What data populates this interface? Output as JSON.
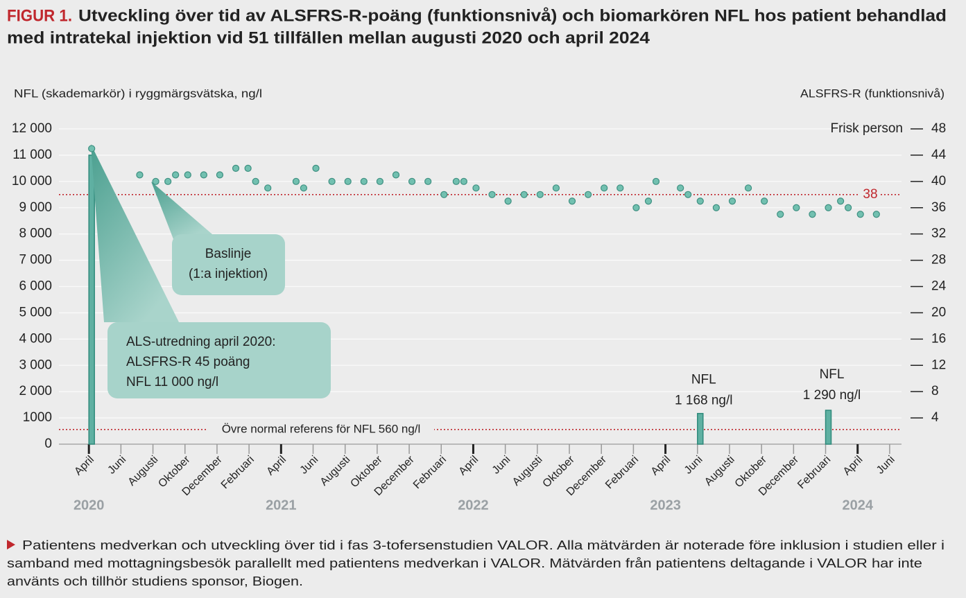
{
  "title_prefix": "FIGUR 1.",
  "title_lines": [
    "Utveckling över tid av ALSFRS-R-poäng (funktionsnivå) och biomarkören NFL hos patient behandlad",
    "med intratekal injektion vid 51 tillfällen mellan augusti 2020 och april 2024"
  ],
  "caption_lines": [
    "Patientens medverkan och utveckling över tid i fas 3-tofersenstudien VALOR. Alla mätvärden är noterade före inklusion i studien eller i",
    "samband med mottagningsbesök parallellt med patientens medverkan i VALOR. Mätvärden från patientens deltagande i VALOR har inte",
    "använts och tillhör studiens sponsor, Biogen."
  ],
  "chart_data": {
    "type": "dual_axis",
    "y_label": "NFL (skademarkör) i ryggmärgsvätska, ng/l",
    "y2_label": "ALSFRS-R (funktionsnivå)",
    "xlim": [
      "2020-02",
      "2024-07"
    ],
    "xticks": [
      {
        "value": "2020-04",
        "label": "April"
      },
      {
        "value": "2020-06",
        "label": "Juni"
      },
      {
        "value": "2020-08",
        "label": "Augusti"
      },
      {
        "value": "2020-10",
        "label": "Oktober"
      },
      {
        "value": "2020-12",
        "label": "December"
      },
      {
        "value": "2021-02",
        "label": "Februari"
      },
      {
        "value": "2021-04",
        "label": "April"
      },
      {
        "value": "2021-06",
        "label": "Juni"
      },
      {
        "value": "2021-08",
        "label": "Augusti"
      },
      {
        "value": "2021-10",
        "label": "Oktober"
      },
      {
        "value": "2021-12",
        "label": "December"
      },
      {
        "value": "2022-02",
        "label": "Februari"
      },
      {
        "value": "2022-04",
        "label": "April"
      },
      {
        "value": "2022-06",
        "label": "Juni"
      },
      {
        "value": "2022-08",
        "label": "Augusti"
      },
      {
        "value": "2022-10",
        "label": "Oktober"
      },
      {
        "value": "2022-12",
        "label": "December"
      },
      {
        "value": "2023-02",
        "label": "Februari"
      },
      {
        "value": "2023-04",
        "label": "April"
      },
      {
        "value": "2023-06",
        "label": "Juni"
      },
      {
        "value": "2023-08",
        "label": "Augusti"
      },
      {
        "value": "2023-10",
        "label": "Oktober"
      },
      {
        "value": "2023-12",
        "label": "December"
      },
      {
        "value": "2024-02",
        "label": "Februari"
      },
      {
        "value": "2024-04",
        "label": "April"
      },
      {
        "value": "2024-06",
        "label": "Juni"
      }
    ],
    "x_year_labels": [
      {
        "value": "2020-04",
        "label": "2020"
      },
      {
        "value": "2021-04",
        "label": "2021"
      },
      {
        "value": "2022-04",
        "label": "2022"
      },
      {
        "value": "2023-04",
        "label": "2023"
      },
      {
        "value": "2024-04",
        "label": "2024"
      }
    ],
    "ylim": [
      0,
      12000
    ],
    "yticks": [
      0,
      1000,
      {
        "value": 2000,
        "label": "2 000"
      },
      {
        "value": 3000,
        "label": "3 000"
      },
      {
        "value": 4000,
        "label": "4 000"
      },
      {
        "value": 5000,
        "label": "5 000"
      },
      {
        "value": 6000,
        "label": "6 000"
      },
      {
        "value": 7000,
        "label": "7 000"
      },
      {
        "value": 8000,
        "label": "8 000"
      },
      {
        "value": 9000,
        "label": "9 000"
      },
      {
        "value": 10000,
        "label": "10 000"
      },
      {
        "value": 11000,
        "label": "11 000"
      },
      {
        "value": 12000,
        "label": "12 000"
      }
    ],
    "y2lim": [
      0,
      48
    ],
    "y2ticks": [
      4,
      8,
      12,
      16,
      20,
      24,
      28,
      32,
      36,
      40,
      44,
      48
    ],
    "grid": true,
    "series": [
      {
        "type": "bar",
        "axis": "y",
        "color": "#5fb0a2",
        "x": [
          "2020-04",
          "2023-06",
          "2024-02"
        ],
        "values": [
          11000,
          1168,
          1290
        ]
      },
      {
        "type": "scatter",
        "axis": "y2",
        "color": "#72c0b0",
        "x": [
          "2020-04",
          "2020-07",
          "2020-08",
          "2020-09",
          "2020-09",
          "2020-10",
          "2020-11",
          "2020-12",
          "2021-01",
          "2021-02",
          "2021-02",
          "2021-03",
          "2021-05",
          "2021-05",
          "2021-06",
          "2021-07",
          "2021-08",
          "2021-09",
          "2021-10",
          "2021-11",
          "2021-12",
          "2022-01",
          "2022-02",
          "2022-03",
          "2022-03",
          "2022-04",
          "2022-05",
          "2022-06",
          "2022-07",
          "2022-08",
          "2022-09",
          "2022-10",
          "2022-11",
          "2022-12",
          "2023-01",
          "2023-02",
          "2023-03",
          "2023-03",
          "2023-05",
          "2023-05",
          "2023-06",
          "2023-07",
          "2023-08",
          "2023-09",
          "2023-10",
          "2023-11",
          "2023-12",
          "2024-01",
          "2024-02",
          "2024-03",
          "2024-03",
          "2024-04",
          "2024-05"
        ],
        "values": [
          45,
          41,
          40,
          40,
          41,
          41,
          41,
          41,
          42,
          42,
          40,
          39,
          40,
          39,
          42,
          40,
          40,
          40,
          40,
          41,
          40,
          40,
          38,
          40,
          40,
          39,
          38,
          37,
          38,
          38,
          39,
          37,
          38,
          39,
          39,
          36,
          37,
          40,
          39,
          38,
          37,
          36,
          37,
          39,
          37,
          35,
          36,
          35,
          36,
          37,
          36,
          35,
          35
        ]
      }
    ],
    "reference_lines": [
      {
        "axis": "y",
        "value": 560,
        "label": "Övre normal referens för NFL 560 ng/l",
        "color": "#c0272d"
      },
      {
        "axis": "y2",
        "value": 38,
        "color": "#c0272d"
      }
    ],
    "y2_markers": [
      {
        "value": 48,
        "label": "Frisk person"
      }
    ],
    "annotations": [
      {
        "lines": [
          "Baslinje",
          "(1:a injektion)"
        ]
      },
      {
        "lines": [
          "ALS-utredning april 2020:",
          "ALSFRS-R 45 poäng",
          "NFL 11 000 ng/l"
        ]
      },
      {
        "lines": [
          "NFL",
          "1 168 ng/l"
        ]
      },
      {
        "lines": [
          "NFL",
          "1 290 ng/l"
        ]
      }
    ]
  }
}
